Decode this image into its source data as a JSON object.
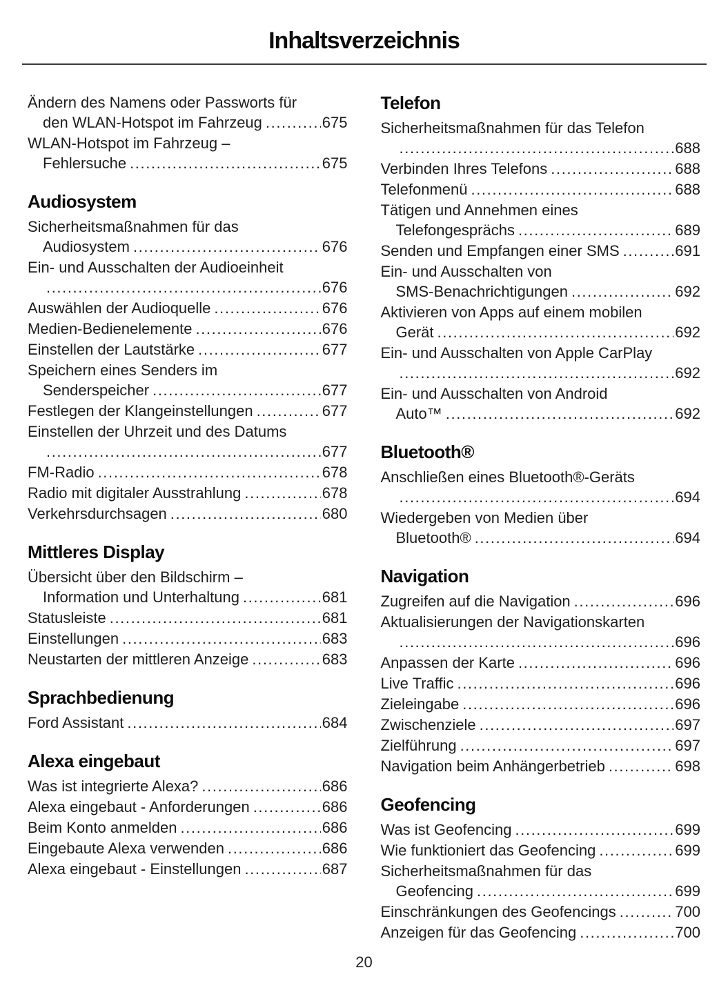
{
  "page": {
    "title": "Inhaltsverzeichnis",
    "page_number": "20"
  },
  "columns": [
    {
      "sections": [
        {
          "heading": "",
          "entries": [
            {
              "lines": [
                "Ändern des Namens oder Passworts für",
                "den WLAN-Hotspot im Fahrzeug"
              ],
              "page": "675"
            },
            {
              "lines": [
                "WLAN-Hotspot im Fahrzeug –",
                "Fehlersuche"
              ],
              "page": "675"
            }
          ]
        },
        {
          "heading": "Audiosystem",
          "entries": [
            {
              "lines": [
                "Sicherheitsmaßnahmen für das",
                "Audiosystem"
              ],
              "page": "676"
            },
            {
              "lines": [
                "Ein- und Ausschalten der Audioeinheit",
                ""
              ],
              "page": "676"
            },
            {
              "lines": [
                "Auswählen der Audioquelle"
              ],
              "page": "676"
            },
            {
              "lines": [
                "Medien-Bedienelemente"
              ],
              "page": "676"
            },
            {
              "lines": [
                "Einstellen der Lautstärke"
              ],
              "page": "677"
            },
            {
              "lines": [
                "Speichern eines Senders im",
                "Senderspeicher"
              ],
              "page": "677"
            },
            {
              "lines": [
                "Festlegen der Klangeinstellungen"
              ],
              "page": "677"
            },
            {
              "lines": [
                "Einstellen der Uhrzeit und des Datums",
                ""
              ],
              "page": "677"
            },
            {
              "lines": [
                "FM-Radio"
              ],
              "page": "678"
            },
            {
              "lines": [
                "Radio mit digitaler Ausstrahlung"
              ],
              "page": "678"
            },
            {
              "lines": [
                "Verkehrsdurchsagen"
              ],
              "page": "680"
            }
          ]
        },
        {
          "heading": "Mittleres Display",
          "entries": [
            {
              "lines": [
                "Übersicht über den Bildschirm –",
                "Information und Unterhaltung"
              ],
              "page": "681"
            },
            {
              "lines": [
                "Statusleiste"
              ],
              "page": "681"
            },
            {
              "lines": [
                "Einstellungen"
              ],
              "page": "683"
            },
            {
              "lines": [
                "Neustarten der mittleren Anzeige"
              ],
              "page": "683"
            }
          ]
        },
        {
          "heading": "Sprachbedienung",
          "entries": [
            {
              "lines": [
                "Ford Assistant"
              ],
              "page": "684"
            }
          ]
        },
        {
          "heading": "Alexa eingebaut",
          "entries": [
            {
              "lines": [
                "Was ist integrierte Alexa?"
              ],
              "page": "686"
            },
            {
              "lines": [
                "Alexa eingebaut - Anforderungen"
              ],
              "page": "686"
            },
            {
              "lines": [
                "Beim Konto anmelden"
              ],
              "page": "686"
            },
            {
              "lines": [
                "Eingebaute Alexa verwenden"
              ],
              "page": "686"
            },
            {
              "lines": [
                "Alexa eingebaut - Einstellungen"
              ],
              "page": "687"
            }
          ]
        }
      ]
    },
    {
      "sections": [
        {
          "heading": "Telefon",
          "entries": [
            {
              "lines": [
                "Sicherheitsmaßnahmen für das Telefon",
                ""
              ],
              "page": "688"
            },
            {
              "lines": [
                "Verbinden Ihres Telefons"
              ],
              "page": "688"
            },
            {
              "lines": [
                "Telefonmenü"
              ],
              "page": "688"
            },
            {
              "lines": [
                "Tätigen und Annehmen eines",
                "Telefongesprächs"
              ],
              "page": "689"
            },
            {
              "lines": [
                "Senden und Empfangen einer SMS"
              ],
              "page": "691"
            },
            {
              "lines": [
                "Ein- und Ausschalten von",
                "SMS-Benachrichtigungen"
              ],
              "page": "692"
            },
            {
              "lines": [
                "Aktivieren von Apps auf einem mobilen",
                "Gerät"
              ],
              "page": "692"
            },
            {
              "lines": [
                "Ein- und Ausschalten von Apple CarPlay",
                ""
              ],
              "page": "692"
            },
            {
              "lines": [
                "Ein- und Ausschalten von Android",
                "Auto™"
              ],
              "page": "692"
            }
          ]
        },
        {
          "heading": "Bluetooth®",
          "entries": [
            {
              "lines": [
                "Anschließen eines Bluetooth®-Geräts",
                ""
              ],
              "page": "694"
            },
            {
              "lines": [
                "Wiedergeben von Medien über",
                "Bluetooth®"
              ],
              "page": "694"
            }
          ]
        },
        {
          "heading": "Navigation",
          "entries": [
            {
              "lines": [
                "Zugreifen auf die Navigation"
              ],
              "page": "696"
            },
            {
              "lines": [
                "Aktualisierungen der Navigationskarten",
                ""
              ],
              "page": "696"
            },
            {
              "lines": [
                "Anpassen der Karte"
              ],
              "page": "696"
            },
            {
              "lines": [
                "Live Traffic"
              ],
              "page": "696"
            },
            {
              "lines": [
                "Zieleingabe"
              ],
              "page": "696"
            },
            {
              "lines": [
                "Zwischenziele"
              ],
              "page": "697"
            },
            {
              "lines": [
                "Zielführung"
              ],
              "page": "697"
            },
            {
              "lines": [
                "Navigation beim Anhängerbetrieb"
              ],
              "page": "698"
            }
          ]
        },
        {
          "heading": "Geofencing",
          "entries": [
            {
              "lines": [
                "Was ist Geofencing"
              ],
              "page": "699"
            },
            {
              "lines": [
                "Wie funktioniert das Geofencing"
              ],
              "page": "699"
            },
            {
              "lines": [
                "Sicherheitsmaßnahmen für das",
                "Geofencing"
              ],
              "page": "699"
            },
            {
              "lines": [
                "Einschränkungen des Geofencings"
              ],
              "page": "700"
            },
            {
              "lines": [
                "Anzeigen für das Geofencing"
              ],
              "page": "700"
            }
          ]
        }
      ]
    }
  ]
}
